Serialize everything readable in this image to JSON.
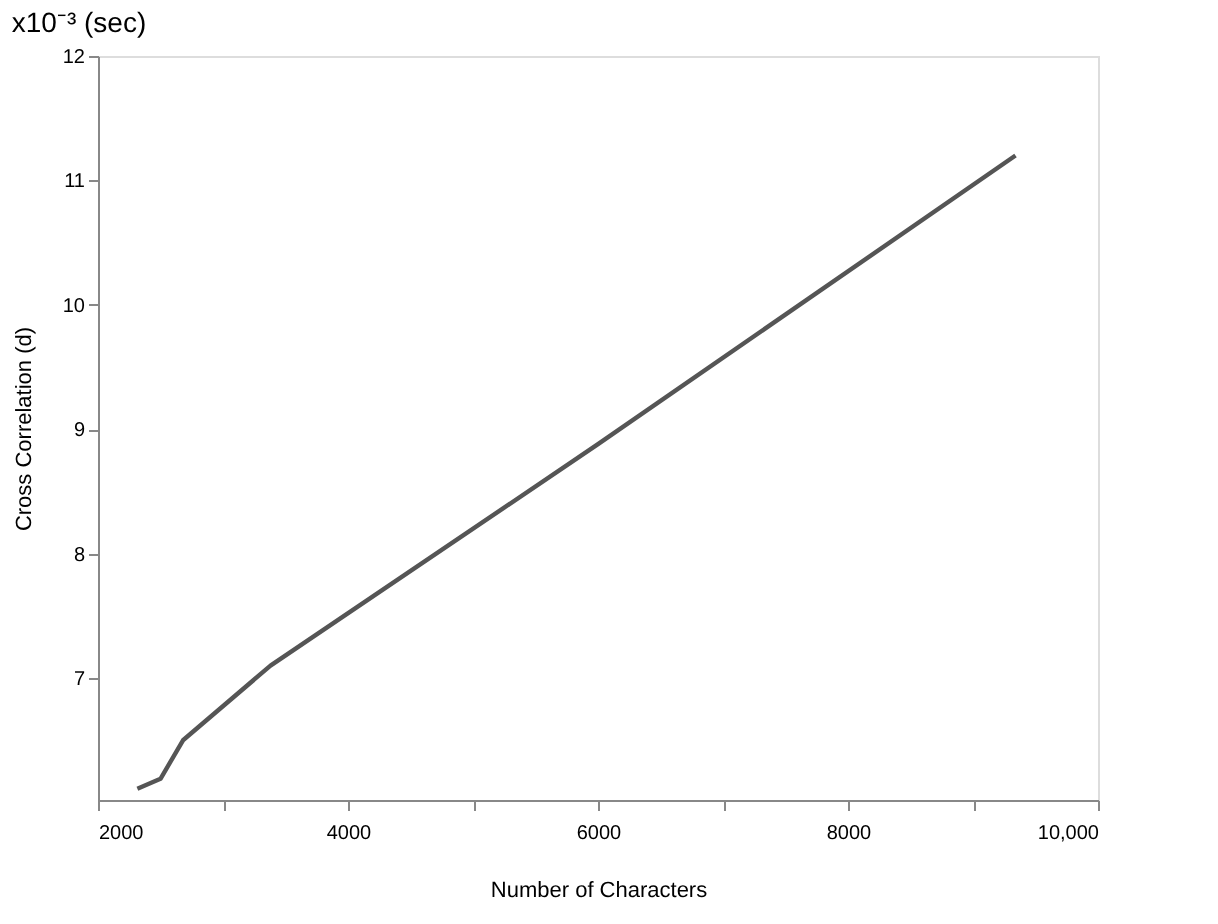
{
  "chart_data": {
    "type": "line",
    "title": "x10⁻³ (sec)",
    "xlabel": "Number of Characters",
    "ylabel": "Cross Correlation (d)",
    "x": [
      2315,
      2500,
      2680,
      3380,
      6000,
      9340
    ],
    "series": [
      {
        "color": "#555555",
        "values": [
          6.11,
          6.19,
          6.5,
          7.1,
          8.88,
          11.2
        ]
      }
    ],
    "xlim": [
      2000,
      10000
    ],
    "xticks": [
      2000,
      {
        "value": 3000,
        "label": null
      },
      4000,
      {
        "value": 5000,
        "label": null
      },
      6000,
      {
        "value": 7000,
        "label": null
      },
      8000,
      {
        "value": 9000,
        "label": null
      },
      {
        "value": 10000,
        "label": "10,000"
      }
    ],
    "ylim": [
      6.02,
      12
    ],
    "yticks": [
      7,
      8,
      9,
      10,
      11,
      12
    ],
    "grid": false,
    "marker": "none",
    "line_style": "solid"
  }
}
